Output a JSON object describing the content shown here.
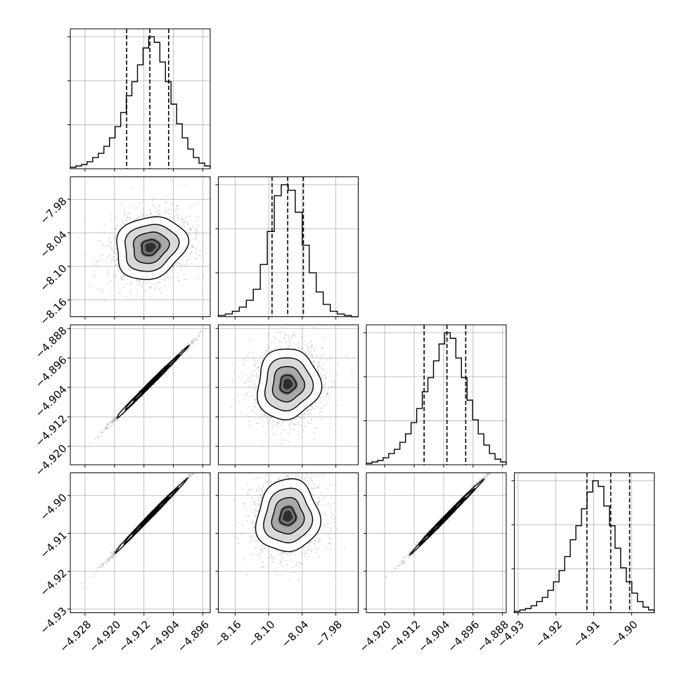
{
  "chart_data": {
    "type": "corner",
    "grid": true,
    "n_params": 4,
    "quantile_lines": "dashed",
    "histograms": [
      {
        "param_index": 0,
        "range": [
          -4.932,
          -4.894
        ],
        "counts": [
          1,
          2,
          3,
          5,
          8,
          11,
          16,
          22,
          30,
          40,
          52,
          62,
          74,
          86,
          94,
          90,
          76,
          62,
          46,
          32,
          22,
          14,
          8,
          4,
          2
        ],
        "quantiles": [
          -4.9167,
          -4.9104,
          -4.9053
        ],
        "y_tick_count": 3
      },
      {
        "param_index": 1,
        "range": [
          -8.19,
          -7.94
        ],
        "counts": [
          1,
          2,
          4,
          7,
          12,
          20,
          38,
          62,
          88,
          96,
          92,
          76,
          52,
          32,
          18,
          9,
          4,
          2,
          1,
          0
        ],
        "quantiles": [
          -8.094,
          -8.066,
          -8.038
        ],
        "y_tick_count": 3
      },
      {
        "param_index": 2,
        "range": [
          -4.925,
          -4.887
        ],
        "counts": [
          1,
          2,
          3,
          5,
          8,
          11,
          16,
          22,
          30,
          40,
          52,
          62,
          74,
          86,
          94,
          90,
          76,
          62,
          46,
          32,
          22,
          14,
          8,
          4,
          2
        ],
        "quantiles": [
          -4.9093,
          -4.9031,
          -4.898
        ],
        "y_tick_count": 3
      },
      {
        "param_index": 3,
        "range": [
          -4.931,
          -4.894
        ],
        "counts": [
          1,
          2,
          3,
          5,
          8,
          11,
          16,
          22,
          30,
          40,
          52,
          62,
          74,
          86,
          94,
          90,
          76,
          62,
          46,
          32,
          22,
          14,
          8,
          4,
          2
        ],
        "quantiles": [
          -4.9118,
          -4.9055,
          -4.9005
        ],
        "y_tick_count": 3
      }
    ],
    "scatter_panels": [
      {
        "row": 1,
        "col": 0,
        "x_mean": -4.9103,
        "y_mean": -8.066,
        "x_sd": 0.0048,
        "y_sd": 0.028,
        "correlation": 0.15
      },
      {
        "row": 2,
        "col": 0,
        "x_mean": -4.9103,
        "y_mean": -4.9031,
        "x_sd": 0.0048,
        "y_sd": 0.0048,
        "correlation": 0.997
      },
      {
        "row": 2,
        "col": 1,
        "x_mean": -8.066,
        "y_mean": -4.9031,
        "x_sd": 0.028,
        "y_sd": 0.0048,
        "correlation": 0.05
      },
      {
        "row": 3,
        "col": 0,
        "x_mean": -4.9103,
        "y_mean": -4.9055,
        "x_sd": 0.0048,
        "y_sd": 0.0048,
        "correlation": 0.997
      },
      {
        "row": 3,
        "col": 1,
        "x_mean": -8.066,
        "y_mean": -4.9055,
        "x_sd": 0.028,
        "y_sd": 0.0048,
        "correlation": 0.05
      },
      {
        "row": 3,
        "col": 2,
        "x_mean": -4.9031,
        "y_mean": -4.9055,
        "x_sd": 0.0048,
        "y_sd": 0.0048,
        "correlation": 0.997
      }
    ],
    "x_axes": [
      {
        "col": 0,
        "range": [
          -4.932,
          -4.894
        ],
        "ticks": [
          -4.928,
          -4.92,
          -4.912,
          -4.904,
          -4.896
        ],
        "tick_labels": [
          "−4.928",
          "−4.920",
          "−4.912",
          "−4.904",
          "−4.896"
        ]
      },
      {
        "col": 1,
        "range": [
          -8.19,
          -7.94
        ],
        "ticks": [
          -8.16,
          -8.1,
          -8.04,
          -7.98
        ],
        "tick_labels": [
          "−8.16",
          "−8.10",
          "−8.04",
          "−7.98"
        ]
      },
      {
        "col": 2,
        "range": [
          -4.925,
          -4.887
        ],
        "ticks": [
          -4.92,
          -4.912,
          -4.904,
          -4.896,
          -4.888
        ],
        "tick_labels": [
          "−4.920",
          "−4.912",
          "−4.904",
          "−4.896",
          "−4.888"
        ]
      },
      {
        "col": 3,
        "range": [
          -4.931,
          -4.894
        ],
        "ticks": [
          -4.93,
          -4.92,
          -4.91,
          -4.9
        ],
        "tick_labels": [
          "−4.93",
          "−4.92",
          "−4.91",
          "−4.90"
        ]
      }
    ],
    "y_axes": [
      {
        "row": 1,
        "range": [
          -8.19,
          -7.94
        ],
        "ticks": [
          -8.16,
          -8.1,
          -8.04,
          -7.98
        ],
        "tick_labels": [
          "−8.16",
          "−8.10",
          "−8.04",
          "−7.98"
        ]
      },
      {
        "row": 2,
        "range": [
          -4.925,
          -4.887
        ],
        "ticks": [
          -4.92,
          -4.912,
          -4.904,
          -4.896,
          -4.888
        ],
        "tick_labels": [
          "−4.920",
          "−4.912",
          "−4.904",
          "−4.896",
          "−4.888"
        ]
      },
      {
        "row": 3,
        "range": [
          -4.931,
          -4.894
        ],
        "ticks": [
          -4.93,
          -4.92,
          -4.91,
          -4.9
        ],
        "tick_labels": [
          "−4.93",
          "−4.92",
          "−4.91",
          "−4.90"
        ]
      }
    ],
    "colors": {
      "line": "#000000",
      "points": "#888888",
      "grid": "#b0b0b0",
      "density": "#000000"
    }
  }
}
